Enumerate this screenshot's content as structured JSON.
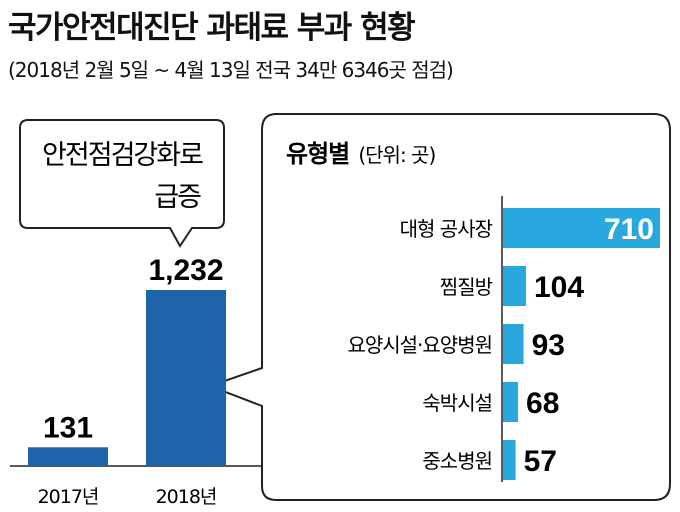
{
  "title": "국가안전대진단 과태료 부과 현황",
  "subtitle": "(2018년 2월 5일 ~ 4월 13일 전국 34만 6346곳 점검)",
  "colors": {
    "dark_bar": "#1e64aa",
    "light_bar": "#29a8e0",
    "text": "#111111",
    "frame": "#222222"
  },
  "chart_data": [
    {
      "type": "bar",
      "categories": [
        "2017년",
        "2018년"
      ],
      "values": [
        131,
        1232
      ],
      "value_labels": [
        "131",
        "1,232"
      ],
      "callout": [
        "안전점검강화로",
        "급증"
      ]
    },
    {
      "type": "bar",
      "orientation": "horizontal",
      "title": "유형별",
      "unit": "(단위: 곳)",
      "categories": [
        "대형 공사장",
        "찜질방",
        "요양시설·요양병원",
        "숙박시설",
        "중소병원"
      ],
      "values": [
        710,
        104,
        93,
        68,
        57
      ],
      "value_labels": [
        "710",
        "104",
        "93",
        "68",
        "57"
      ]
    }
  ]
}
